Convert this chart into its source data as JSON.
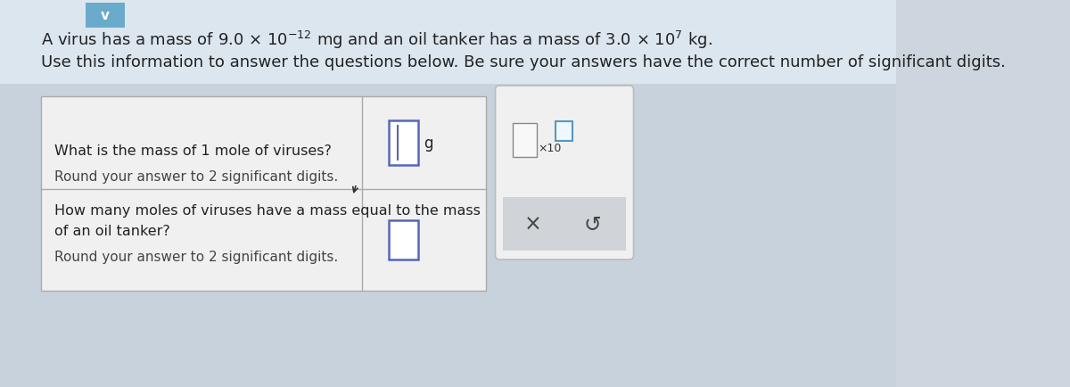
{
  "background_color": "#cdd5de",
  "page_bg_top": "#d8e3ec",
  "title_line2": "Use this information to answer the questions below. Be sure your answers have the correct number of significant digits.",
  "q1_text_line1": "What is the mass of 1 mole of viruses?",
  "q1_text_line2": "Round your answer to 2 significant digits.",
  "q2_text_line1": "How many moles of viruses have a mass equal to the mass",
  "q2_text_line2": "of an oil tanker?",
  "q2_text_line3": "Round your answer to 2 significant digits.",
  "unit_label": "g",
  "table_bg": "#f0f0f0",
  "table_border": "#aaaaaa",
  "input_border": "#5566bb",
  "input_bg": "#ffffff",
  "right_panel_bg": "#f0f0f0",
  "right_panel_border": "#bbbbbb",
  "bottom_bar_bg": "#d0d4d8",
  "x_color": "#444444",
  "undo_color": "#444444",
  "header_bg": "#6aabcc",
  "chevron_color": "#ffffff",
  "cursor_color": "#5566bb",
  "text_color": "#222222",
  "fontsize_title": 13,
  "fontsize_body": 11.5
}
